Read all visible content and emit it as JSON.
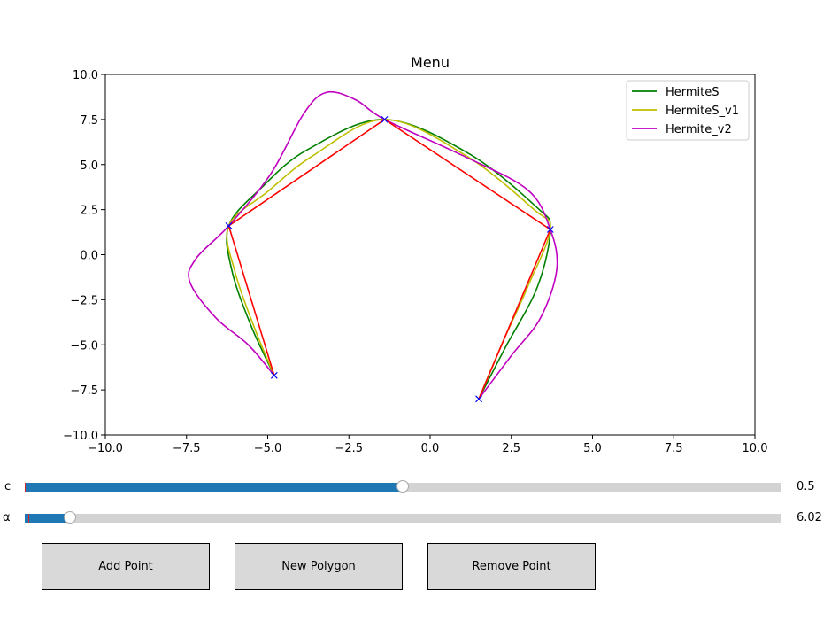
{
  "chart_data": {
    "type": "line",
    "title": "Menu",
    "xlim": [
      -10,
      10
    ],
    "ylim": [
      -10,
      10
    ],
    "xticks": [
      "−10.0",
      "−7.5",
      "−5.0",
      "−2.5",
      "0.0",
      "2.5",
      "5.0",
      "7.5",
      "10.0"
    ],
    "yticks": [
      "−10.0",
      "−7.5",
      "−5.0",
      "−2.5",
      "0.0",
      "2.5",
      "5.0",
      "7.5",
      "10.0"
    ],
    "xtick_values": [
      -10,
      -7.5,
      -5,
      -2.5,
      0,
      2.5,
      5,
      7.5,
      10
    ],
    "ytick_values": [
      -10,
      -7.5,
      -5,
      -2.5,
      0,
      2.5,
      5,
      7.5,
      10
    ],
    "grid": false,
    "legend_position": "top-right",
    "control_points": {
      "x": [
        -4.8,
        -6.2,
        -1.4,
        3.7,
        1.5
      ],
      "y": [
        -6.7,
        1.6,
        7.5,
        1.4,
        -8.0
      ],
      "color": "#0000ff",
      "polygon_color": "#ff0000"
    },
    "series": [
      {
        "name": "HermiteS",
        "color": "#008000",
        "x": [
          -4.8,
          -5.5,
          -6.1,
          -6.2,
          -5.2,
          -3.8,
          -1.4,
          1.2,
          3.3,
          3.7,
          3.3,
          2.3,
          1.5
        ],
        "y": [
          -6.7,
          -4.0,
          -0.9,
          1.6,
          3.7,
          5.8,
          7.5,
          5.6,
          2.6,
          1.4,
          -1.8,
          -5.2,
          -8.0
        ]
      },
      {
        "name": "HermiteS_v1",
        "color": "#bfbf00",
        "x": [
          -4.8,
          -5.4,
          -6.0,
          -6.2,
          -5.0,
          -3.6,
          -1.4,
          1.1,
          3.2,
          3.7,
          3.0,
          2.2,
          1.5
        ],
        "y": [
          -6.7,
          -4.1,
          -1.0,
          1.6,
          3.5,
          5.5,
          7.5,
          5.5,
          2.5,
          1.4,
          -1.8,
          -5.0,
          -8.0
        ]
      },
      {
        "name": "Hermite_v2",
        "color": "#bf00bf",
        "x": [
          -4.8,
          -5.6,
          -6.6,
          -7.4,
          -7.2,
          -6.2,
          -4.9,
          -3.9,
          -3.2,
          -2.3,
          -1.4,
          1.0,
          3.0,
          3.7,
          3.9,
          3.4,
          2.5,
          1.5
        ],
        "y": [
          -6.7,
          -5.0,
          -3.5,
          -1.5,
          -0.2,
          1.6,
          4.5,
          7.8,
          9.0,
          8.6,
          7.5,
          5.5,
          3.6,
          1.4,
          -0.8,
          -3.5,
          -5.6,
          -8.0
        ]
      }
    ]
  },
  "sliders": [
    {
      "label": "c",
      "value_text": "0.5",
      "fraction": 0.5,
      "initial_fraction": 0.0
    },
    {
      "label": "α",
      "value_text": "6.02",
      "fraction": 0.06,
      "initial_fraction": 0.005
    }
  ],
  "buttons": {
    "add_point": "Add Point",
    "new_polygon": "New Polygon",
    "remove_point": "Remove Point"
  }
}
